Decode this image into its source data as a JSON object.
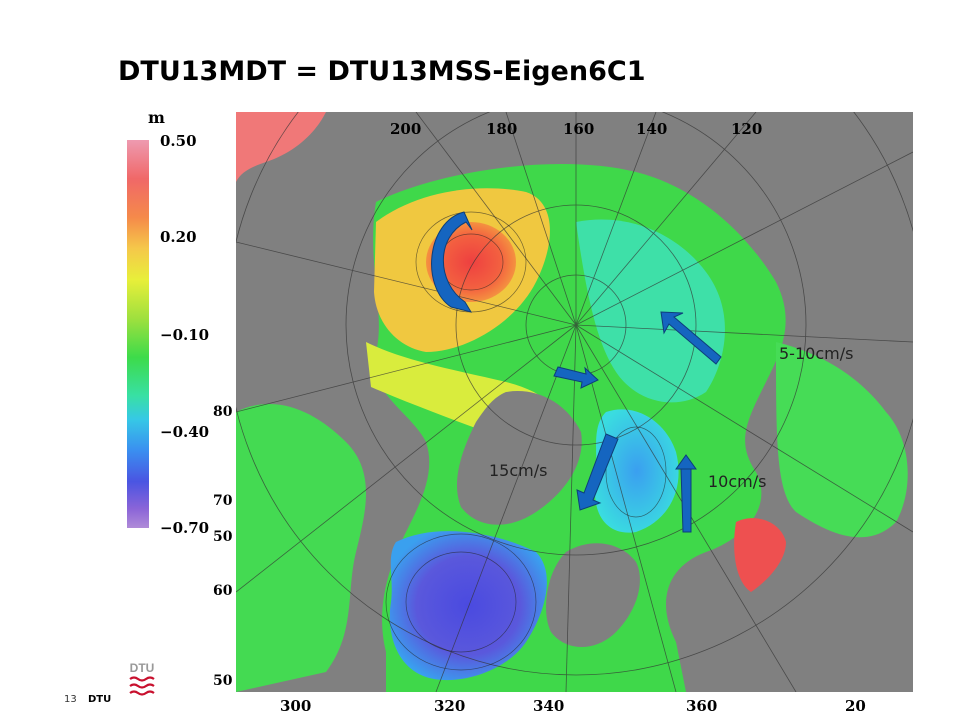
{
  "slide": {
    "title": "DTU13MDT = DTU13MSS-Eigen6C1",
    "page_number": "13",
    "footer_text": "DTU",
    "logo_text": "DTU"
  },
  "colorbar": {
    "unit": "m",
    "ticks": [
      "0.50",
      "0.20",
      "−0.10",
      "−0.40",
      "−0.70"
    ]
  },
  "map": {
    "left_axis_labels": [
      "80",
      "70",
      "50",
      "60",
      "50"
    ],
    "bottom_axis_labels": [
      "300",
      "320",
      "340",
      "360",
      "20"
    ],
    "top_longitude_labels": [
      "200",
      "180",
      "160",
      "140",
      "120"
    ],
    "annotations": {
      "speed_right": "5-10cm/s",
      "speed_left": "15cm/s",
      "speed_bottom": "10cm/s"
    },
    "colors": {
      "land": "#808080",
      "arrow": "#1565c0"
    }
  }
}
